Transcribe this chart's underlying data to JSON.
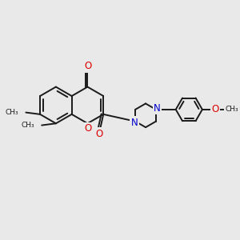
{
  "bg_color": "#e9e9e9",
  "bond_color": "#1a1a1a",
  "o_color": "#dd0000",
  "n_color": "#0000cc",
  "lw": 1.4,
  "doff": 0.1,
  "fs": 8.5,
  "fs_small": 6.5,
  "xlim": [
    0,
    10
  ],
  "ylim": [
    0,
    10
  ]
}
